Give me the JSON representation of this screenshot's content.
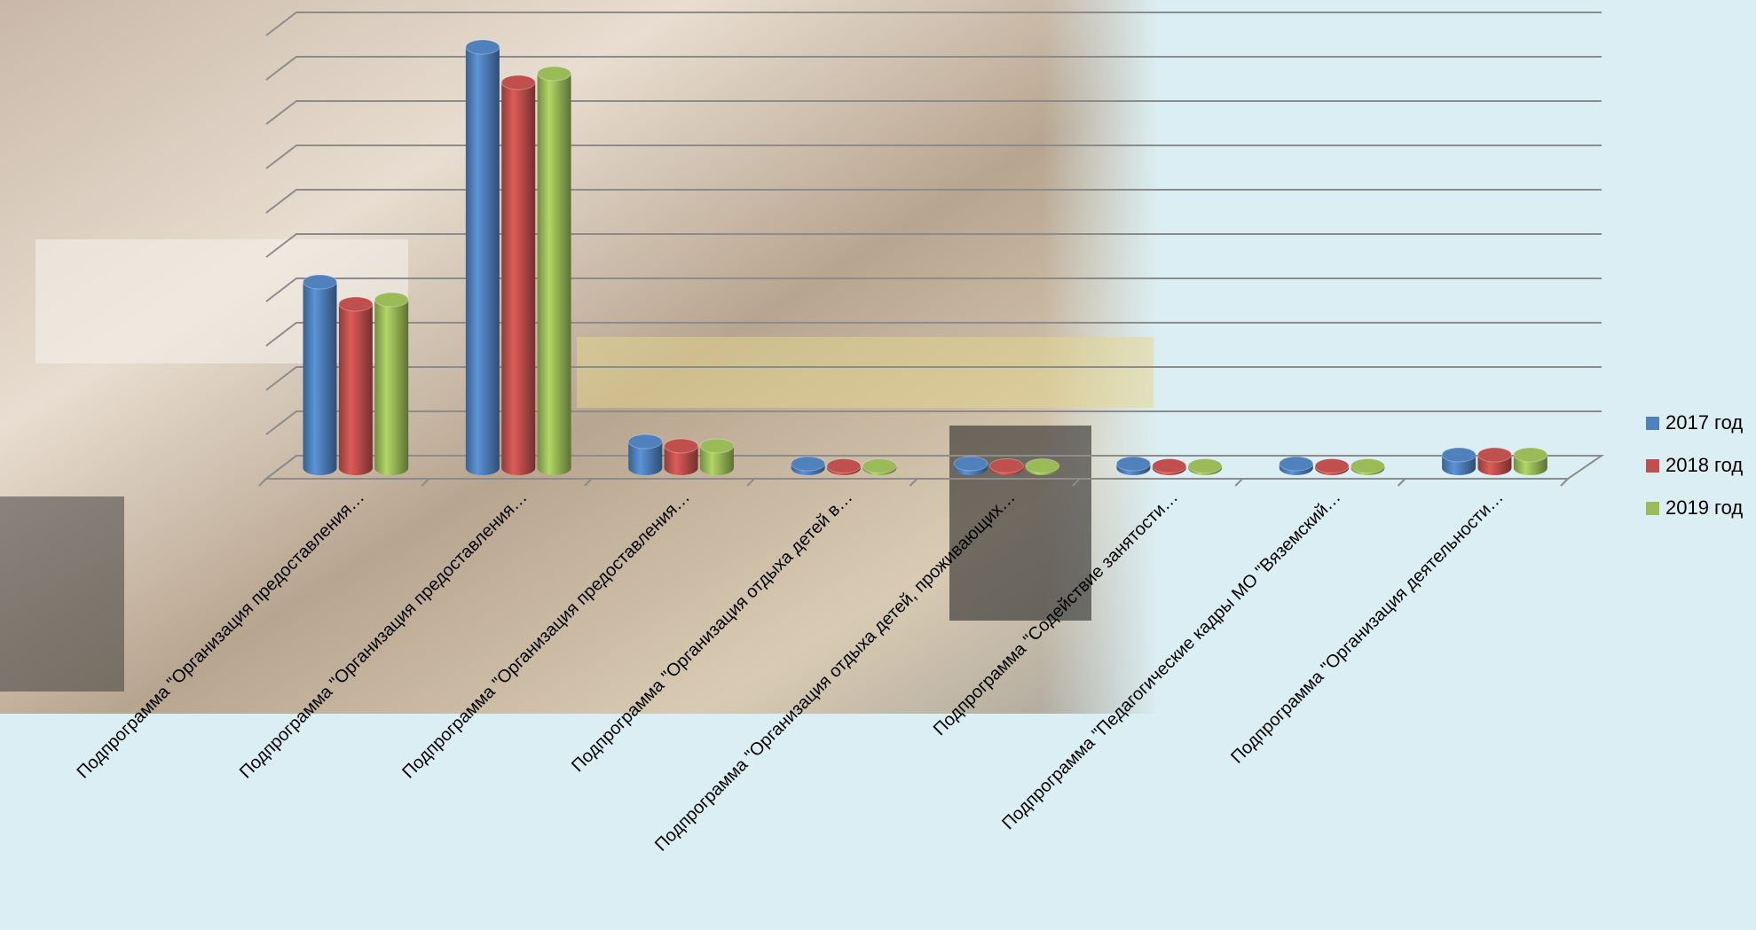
{
  "chart_data": {
    "type": "bar3d",
    "categories": [
      "Подпрограмма \"Организация предоставления…",
      "Подпрограмма \"Организация предоставления…",
      "Подпрограмма \"Организация предоставления…",
      "Подпрограмма \"Организация отдыха детей в…",
      "Подпрограмма \"Организация отдыха детей, проживающих…",
      "Подпрограмма \"Содействие занятости…",
      "Подпрограмма \"Педагогические кадры МО \"Вяземский…",
      "Подпрограмма \"Организация деятельности…"
    ],
    "series": [
      {
        "name": "2017 год",
        "color": "#4f81bd",
        "values": [
          4.2,
          9.5,
          0.6,
          0.1,
          0.1,
          0.1,
          0.1,
          0.3
        ]
      },
      {
        "name": "2018 год",
        "color": "#c0504d",
        "values": [
          3.7,
          8.7,
          0.5,
          0.05,
          0.05,
          0.05,
          0.05,
          0.3
        ]
      },
      {
        "name": "2019 год",
        "color": "#9bbb59",
        "values": [
          3.8,
          8.9,
          0.5,
          0.05,
          0.05,
          0.05,
          0.05,
          0.3
        ]
      }
    ],
    "ylim": [
      0,
      10
    ],
    "yticks": [
      0,
      1,
      2,
      3,
      4,
      5,
      6,
      7,
      8,
      9,
      10
    ],
    "grid": true,
    "legend": "right"
  }
}
